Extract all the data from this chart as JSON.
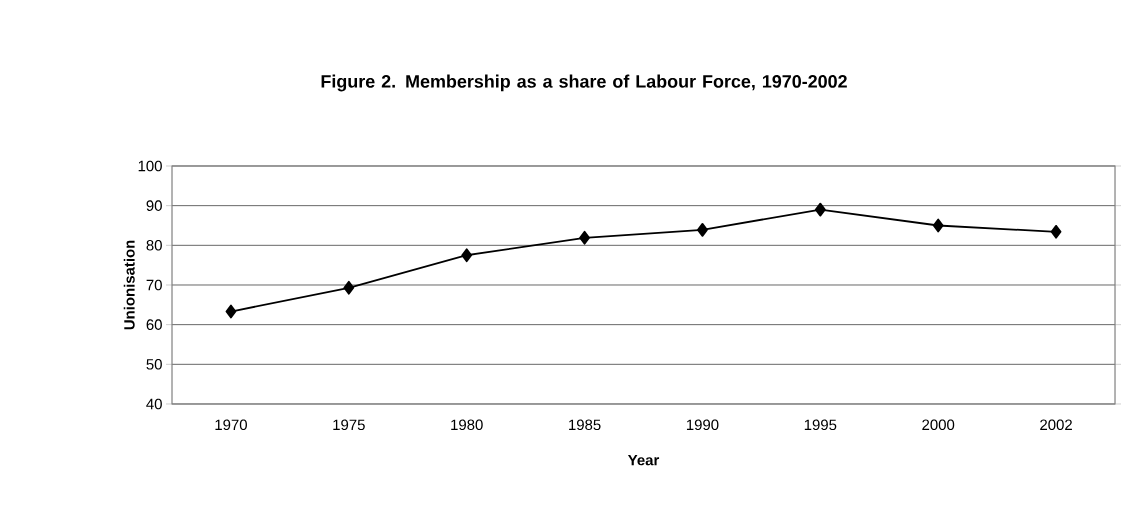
{
  "chart_data": {
    "type": "line",
    "title": "Figure 2. Membership as a share of Labour Force, 1970-2002",
    "xlabel": "Year",
    "ylabel": "Unionisation",
    "categories": [
      "1970",
      "1975",
      "1980",
      "1985",
      "1990",
      "1995",
      "2000",
      "2002"
    ],
    "values": [
      63.3,
      69.3,
      77.5,
      81.9,
      83.9,
      89.0,
      85.0,
      83.4
    ],
    "color": "#000000",
    "marker": "diamond",
    "line_style": "solid",
    "ylim": [
      40,
      100
    ],
    "yticks": [
      40,
      50,
      60,
      70,
      80,
      90,
      100
    ],
    "grid": "y"
  }
}
